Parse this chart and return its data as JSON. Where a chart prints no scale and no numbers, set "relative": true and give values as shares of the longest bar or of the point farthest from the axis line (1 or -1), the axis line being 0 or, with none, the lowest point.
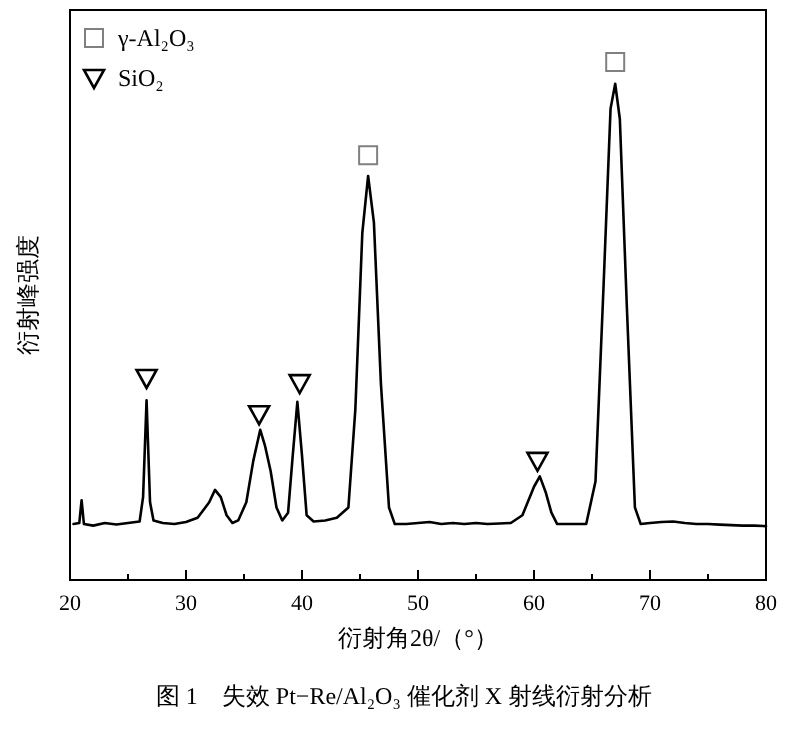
{
  "chart_data": {
    "type": "line",
    "relative": true,
    "xlabel": "衍射角2θ/（°）",
    "ylabel": "衍射峰强度",
    "annotations": [
      "图 1　失效 Pt−Re/Al₂O₃ 催化剂 X 射线衍射分析"
    ],
    "xlim": [
      20,
      80
    ],
    "xticks": [
      20,
      {
        "value": 25,
        "label": null
      },
      30,
      {
        "value": 35,
        "label": null
      },
      40,
      {
        "value": 45,
        "label": null
      },
      50,
      {
        "value": 55,
        "label": null
      },
      60,
      {
        "value": 65,
        "label": null
      },
      70,
      {
        "value": 75,
        "label": null
      },
      80
    ],
    "legend": "top left",
    "series": [
      {
        "color": "#000000",
        "marker": "none",
        "x": [
          20.3,
          20.8,
          21.0,
          21.2,
          22,
          23,
          24,
          25,
          26.0,
          26.3,
          26.6,
          26.9,
          27.2,
          28,
          29,
          30,
          31,
          32,
          32.5,
          33,
          33.5,
          34,
          34.5,
          35.2,
          35.8,
          36.4,
          36.8,
          37.3,
          37.8,
          38.3,
          38.8,
          39.2,
          39.6,
          40.0,
          40.4,
          41,
          42,
          43,
          44,
          44.6,
          45.2,
          45.7,
          46.2,
          46.8,
          47.5,
          48,
          49,
          50,
          51,
          52,
          53,
          54,
          55,
          56,
          57,
          58,
          59,
          60,
          60.5,
          61,
          61.5,
          62,
          63,
          64.5,
          65.3,
          66,
          66.6,
          67,
          67.4,
          68,
          68.7,
          69.2,
          70,
          71,
          72,
          73,
          74,
          75,
          76,
          77,
          78,
          79,
          80
        ],
        "values": [
          0.108,
          0.11,
          0.154,
          0.108,
          0.105,
          0.11,
          0.107,
          0.11,
          0.113,
          0.16,
          0.347,
          0.15,
          0.115,
          0.11,
          0.108,
          0.112,
          0.12,
          0.15,
          0.174,
          0.16,
          0.125,
          0.11,
          0.115,
          0.15,
          0.23,
          0.29,
          0.26,
          0.21,
          0.14,
          0.115,
          0.13,
          0.24,
          0.344,
          0.24,
          0.125,
          0.113,
          0.115,
          0.12,
          0.14,
          0.33,
          0.67,
          0.78,
          0.69,
          0.38,
          0.14,
          0.108,
          0.108,
          0.11,
          0.112,
          0.108,
          0.11,
          0.108,
          0.11,
          0.108,
          0.109,
          0.11,
          0.125,
          0.18,
          0.2,
          0.17,
          0.13,
          0.108,
          0.108,
          0.108,
          0.19,
          0.57,
          0.91,
          0.958,
          0.89,
          0.53,
          0.14,
          0.108,
          0.11,
          0.112,
          0.113,
          0.11,
          0.108,
          0.108,
          0.107,
          0.106,
          0.105,
          0.105,
          0.104
        ]
      },
      {
        "type": "scatter",
        "name": "γ-Al₂O₃",
        "color": "#808080",
        "marker": "square",
        "x": [
          45.7,
          67.0
        ],
        "values": [
          0.82,
          1.0
        ]
      },
      {
        "type": "scatter",
        "name": "SiO₂",
        "color": "#000000",
        "marker": "triangle",
        "x": [
          26.6,
          36.3,
          39.8,
          60.3
        ],
        "values": [
          0.39,
          0.32,
          0.38,
          0.23
        ]
      }
    ]
  }
}
